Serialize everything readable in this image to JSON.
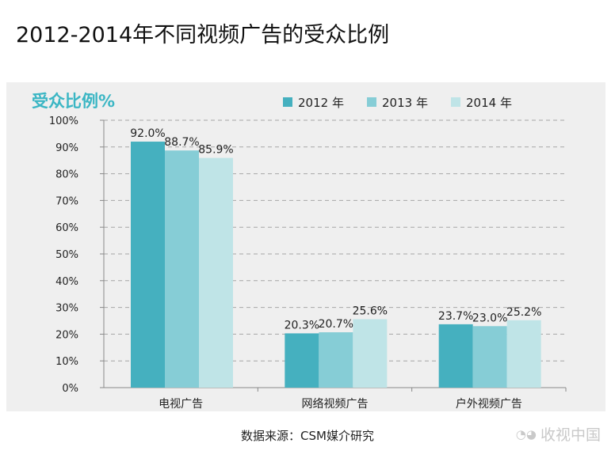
{
  "title": "2012-2014年不同视频广告的受众比例",
  "source_note": "数据来源：CSM媒介研究",
  "watermark": {
    "icon": "wechat-icon",
    "text": "收视中国"
  },
  "colors": {
    "s2012": "#45b0bf",
    "s2013": "#86cdd6",
    "s2014": "#bfe4e7",
    "axis": "#888888",
    "grid": "#a6a6a6"
  },
  "chart_data": {
    "type": "bar",
    "title": "",
    "ylabel": "受众比例%",
    "xlabel": "",
    "categories": [
      "电视广告",
      "网络视频广告",
      "户外视频广告"
    ],
    "series": [
      {
        "name": "2012 年",
        "values": [
          92.0,
          20.3,
          23.7
        ]
      },
      {
        "name": "2013 年",
        "values": [
          88.7,
          20.7,
          23.0
        ]
      },
      {
        "name": "2014 年",
        "values": [
          85.9,
          25.6,
          25.2
        ]
      }
    ],
    "ylim": [
      0,
      100
    ],
    "yticks": [
      "0%",
      "10%",
      "20%",
      "30%",
      "40%",
      "50%",
      "60%",
      "70%",
      "80%",
      "90%",
      "100%"
    ],
    "data_labels": [
      [
        "92.0%",
        "20.3%",
        "23.7%"
      ],
      [
        "88.7%",
        "20.7%",
        "23.0%"
      ],
      [
        "85.9%",
        "25.6%",
        "25.2%"
      ]
    ],
    "legend_position": "top-right",
    "grid": true
  }
}
